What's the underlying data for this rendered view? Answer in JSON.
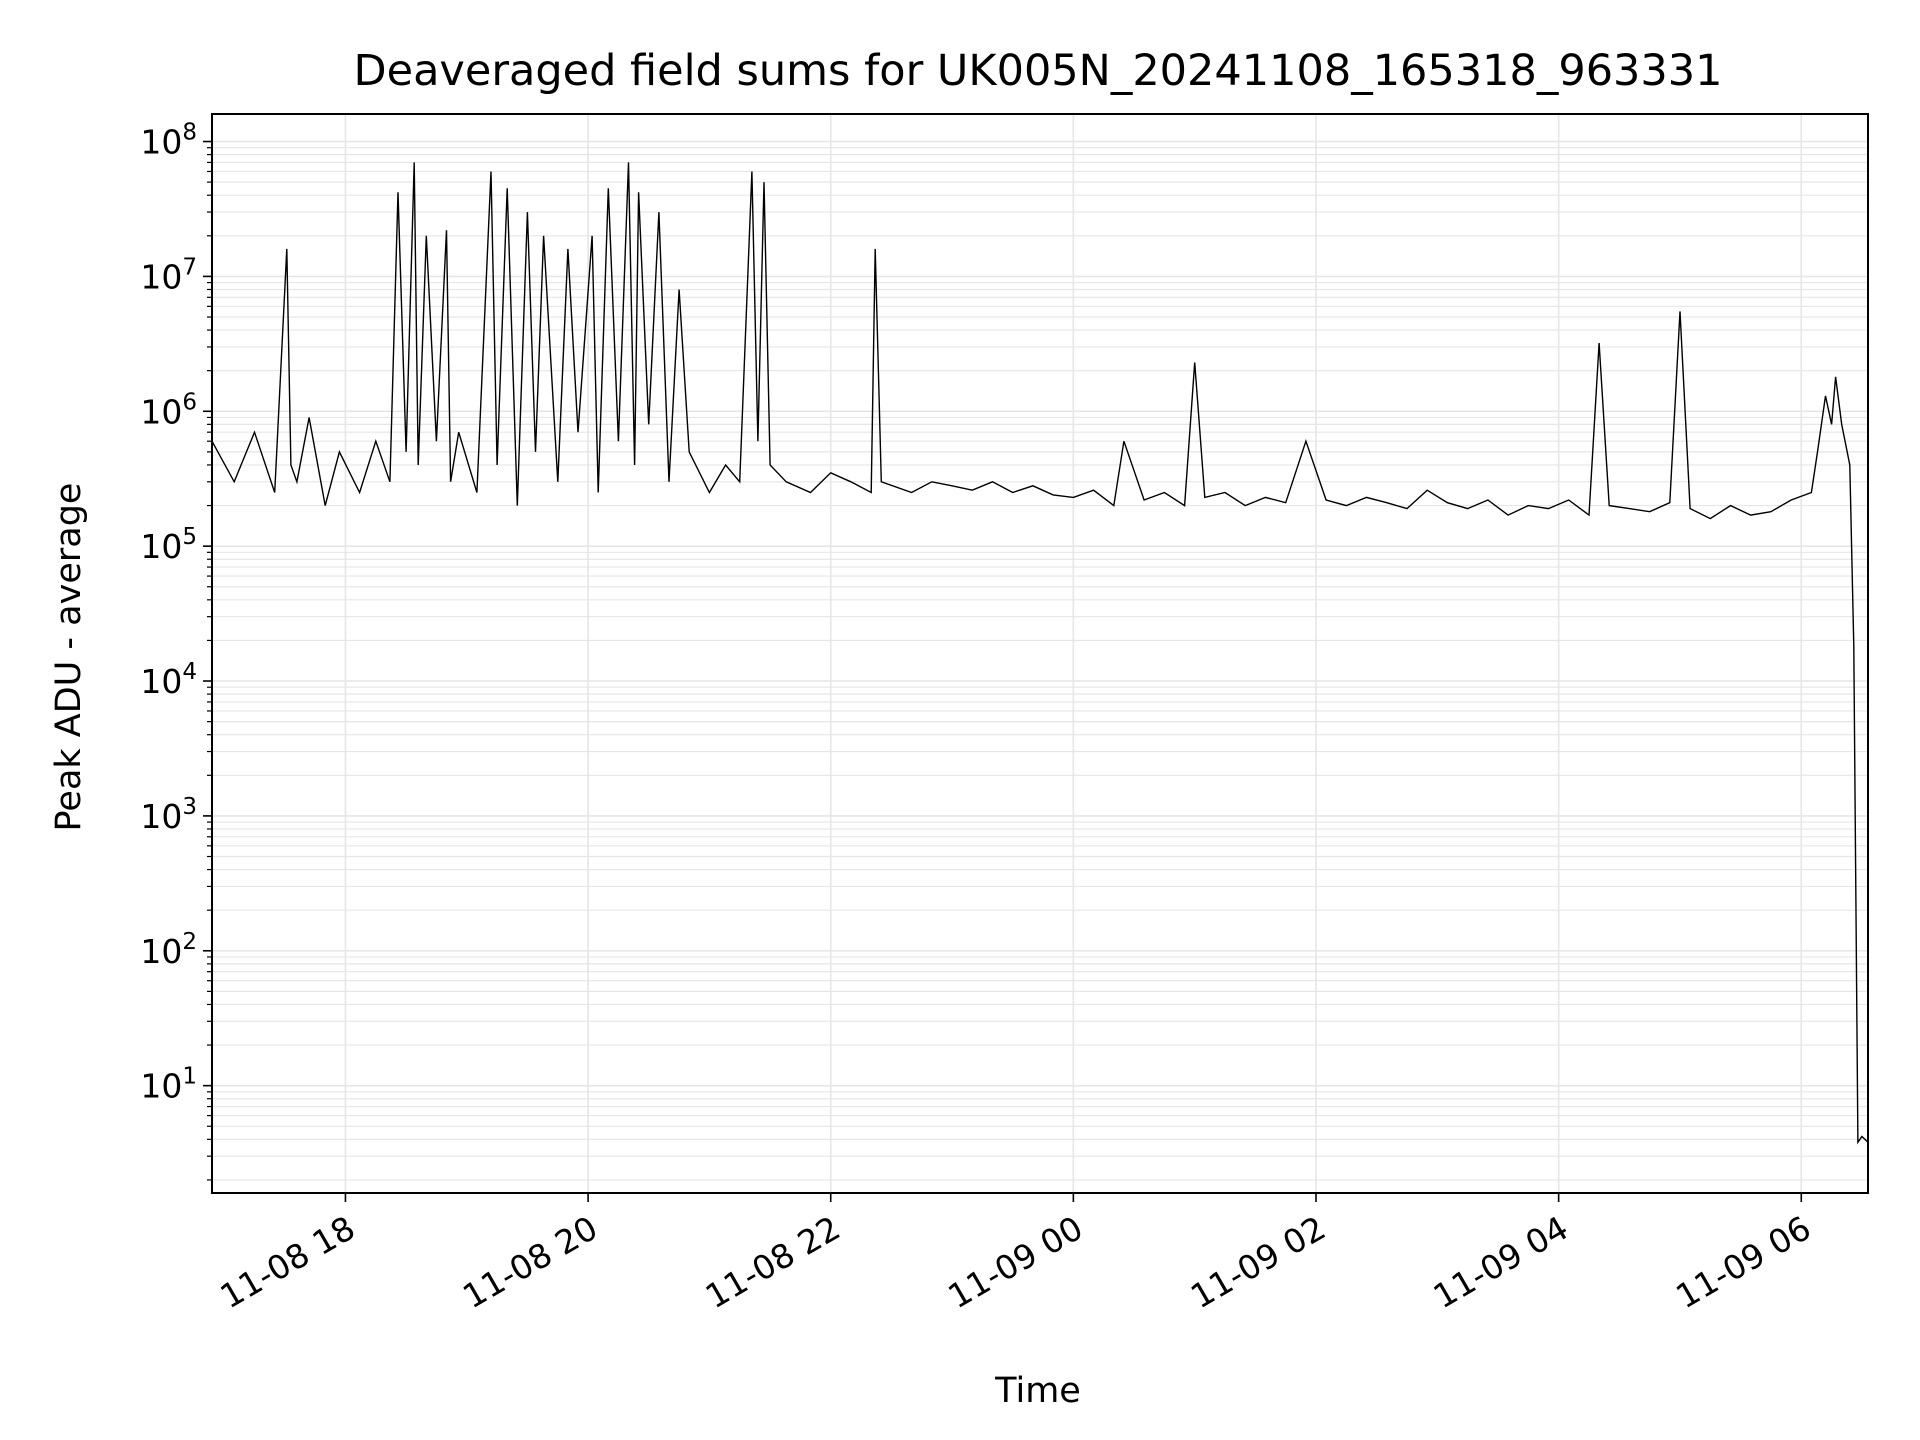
{
  "chart_data": {
    "type": "line",
    "title": "Deaveraged field sums for UK005N_20241108_165318_963331",
    "xlabel": "Time",
    "ylabel": "Peak ADU - average",
    "yscale": "log",
    "xlim": [
      "2024-11-08 16:54",
      "2024-11-09 06:33"
    ],
    "ylim": [
      1.6,
      160000000
    ],
    "grid": true,
    "line_color": "#000000",
    "grid_color": "#e6e6e6",
    "x_ticks": [
      {
        "value": "2024-11-08 18:00",
        "label": "11-08 18"
      },
      {
        "value": "2024-11-08 20:00",
        "label": "11-08 20"
      },
      {
        "value": "2024-11-08 22:00",
        "label": "11-08 22"
      },
      {
        "value": "2024-11-09 00:00",
        "label": "11-09 00"
      },
      {
        "value": "2024-11-09 02:00",
        "label": "11-09 02"
      },
      {
        "value": "2024-11-09 04:00",
        "label": "11-09 04"
      },
      {
        "value": "2024-11-09 06:00",
        "label": "11-09 06"
      }
    ],
    "y_ticks": [
      {
        "value": 10,
        "base": "10",
        "exp": "1"
      },
      {
        "value": 100,
        "base": "10",
        "exp": "2"
      },
      {
        "value": 1000,
        "base": "10",
        "exp": "3"
      },
      {
        "value": 10000,
        "base": "10",
        "exp": "4"
      },
      {
        "value": 100000,
        "base": "10",
        "exp": "5"
      },
      {
        "value": 1000000,
        "base": "10",
        "exp": "6"
      },
      {
        "value": 10000000,
        "base": "10",
        "exp": "7"
      },
      {
        "value": 100000000,
        "base": "10",
        "exp": "8"
      }
    ],
    "series": [
      {
        "x": [
          "2024-11-08 16:54",
          "2024-11-08 17:05",
          "2024-11-08 17:15",
          "2024-11-08 17:25",
          "2024-11-08 17:31",
          "2024-11-08 17:33",
          "2024-11-08 17:36",
          "2024-11-08 17:42",
          "2024-11-08 17:50",
          "2024-11-08 17:57",
          "2024-11-08 18:07",
          "2024-11-08 18:15",
          "2024-11-08 18:22",
          "2024-11-08 18:26",
          "2024-11-08 18:30",
          "2024-11-08 18:34",
          "2024-11-08 18:36",
          "2024-11-08 18:40",
          "2024-11-08 18:45",
          "2024-11-08 18:50",
          "2024-11-08 18:52",
          "2024-11-08 18:56",
          "2024-11-08 19:05",
          "2024-11-08 19:12",
          "2024-11-08 19:15",
          "2024-11-08 19:20",
          "2024-11-08 19:25",
          "2024-11-08 19:30",
          "2024-11-08 19:34",
          "2024-11-08 19:38",
          "2024-11-08 19:45",
          "2024-11-08 19:50",
          "2024-11-08 19:55",
          "2024-11-08 20:02",
          "2024-11-08 20:05",
          "2024-11-08 20:10",
          "2024-11-08 20:15",
          "2024-11-08 20:20",
          "2024-11-08 20:23",
          "2024-11-08 20:25",
          "2024-11-08 20:30",
          "2024-11-08 20:35",
          "2024-11-08 20:40",
          "2024-11-08 20:45",
          "2024-11-08 20:50",
          "2024-11-08 21:00",
          "2024-11-08 21:08",
          "2024-11-08 21:15",
          "2024-11-08 21:21",
          "2024-11-08 21:24",
          "2024-11-08 21:27",
          "2024-11-08 21:30",
          "2024-11-08 21:38",
          "2024-11-08 21:50",
          "2024-11-08 22:00",
          "2024-11-08 22:10",
          "2024-11-08 22:20",
          "2024-11-08 22:22",
          "2024-11-08 22:25",
          "2024-11-08 22:40",
          "2024-11-08 22:50",
          "2024-11-08 23:00",
          "2024-11-08 23:10",
          "2024-11-08 23:20",
          "2024-11-08 23:30",
          "2024-11-08 23:40",
          "2024-11-08 23:50",
          "2024-11-09 00:00",
          "2024-11-09 00:10",
          "2024-11-09 00:20",
          "2024-11-09 00:25",
          "2024-11-09 00:35",
          "2024-11-09 00:45",
          "2024-11-09 00:55",
          "2024-11-09 01:00",
          "2024-11-09 01:05",
          "2024-11-09 01:15",
          "2024-11-09 01:25",
          "2024-11-09 01:35",
          "2024-11-09 01:45",
          "2024-11-09 01:55",
          "2024-11-09 02:05",
          "2024-11-09 02:15",
          "2024-11-09 02:25",
          "2024-11-09 02:35",
          "2024-11-09 02:45",
          "2024-11-09 02:55",
          "2024-11-09 03:05",
          "2024-11-09 03:15",
          "2024-11-09 03:25",
          "2024-11-09 03:35",
          "2024-11-09 03:45",
          "2024-11-09 03:55",
          "2024-11-09 04:05",
          "2024-11-09 04:15",
          "2024-11-09 04:20",
          "2024-11-09 04:25",
          "2024-11-09 04:35",
          "2024-11-09 04:45",
          "2024-11-09 04:55",
          "2024-11-09 05:00",
          "2024-11-09 05:05",
          "2024-11-09 05:15",
          "2024-11-09 05:25",
          "2024-11-09 05:35",
          "2024-11-09 05:45",
          "2024-11-09 05:55",
          "2024-11-09 06:05",
          "2024-11-09 06:08",
          "2024-11-09 06:12",
          "2024-11-09 06:15",
          "2024-11-09 06:17",
          "2024-11-09 06:20",
          "2024-11-09 06:24",
          "2024-11-09 06:26",
          "2024-11-09 06:28",
          "2024-11-09 06:30",
          "2024-11-09 06:33"
        ],
        "y": [
          600000,
          300000,
          700000,
          250000,
          16000000,
          400000,
          300000,
          900000,
          200000,
          500000,
          250000,
          600000,
          300000,
          42000000,
          500000,
          70000000,
          400000,
          20000000,
          600000,
          22000000,
          300000,
          700000,
          250000,
          60000000,
          400000,
          45000000,
          200000,
          30000000,
          500000,
          20000000,
          300000,
          16000000,
          700000,
          20000000,
          250000,
          45000000,
          600000,
          70000000,
          400000,
          42000000,
          800000,
          30000000,
          300000,
          8000000,
          500000,
          250000,
          400000,
          300000,
          60000000,
          600000,
          50000000,
          400000,
          300000,
          250000,
          350000,
          300000,
          250000,
          16000000,
          300000,
          250000,
          300000,
          280000,
          260000,
          300000,
          250000,
          280000,
          240000,
          230000,
          260000,
          200000,
          600000,
          220000,
          250000,
          200000,
          2300000,
          230000,
          250000,
          200000,
          230000,
          210000,
          600000,
          220000,
          200000,
          230000,
          210000,
          190000,
          260000,
          210000,
          190000,
          220000,
          170000,
          200000,
          190000,
          220000,
          170000,
          3200000,
          200000,
          190000,
          180000,
          210000,
          5500000,
          190000,
          160000,
          200000,
          170000,
          180000,
          220000,
          250000,
          500000,
          1300000,
          800000,
          1800000,
          800000,
          400000,
          18000,
          3.8,
          4.2,
          3.8
        ]
      }
    ]
  }
}
